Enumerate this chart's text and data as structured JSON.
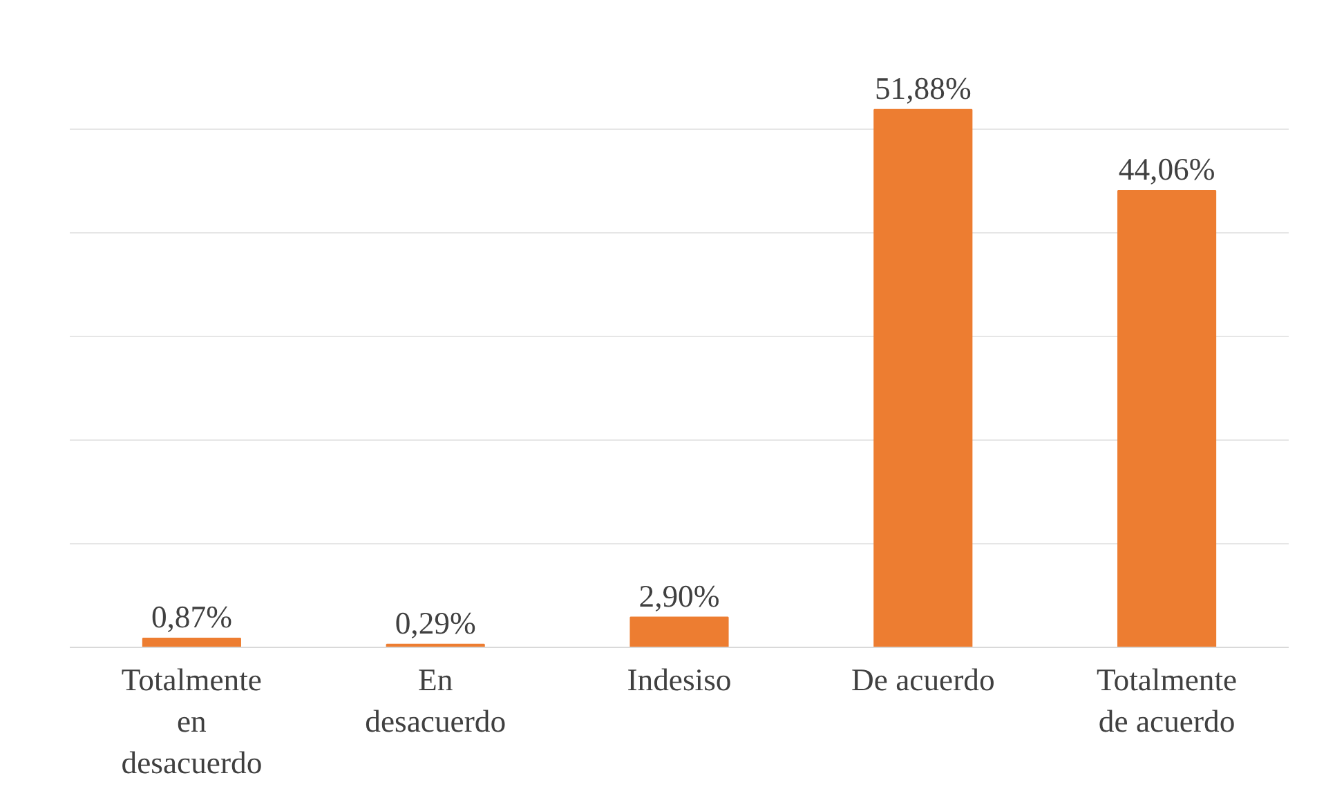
{
  "chart_data": {
    "type": "bar",
    "categories": [
      "Totalmente en desacuerdo",
      "En desacuerdo",
      "Indesiso",
      "De acuerdo",
      "Totalmente de acuerdo"
    ],
    "values": [
      0.87,
      0.29,
      2.9,
      51.88,
      44.06
    ],
    "value_labels": [
      "0,87%",
      "0,29%",
      "2,90%",
      "51,88%",
      "44,06%"
    ],
    "color": "#ed7d31",
    "tick_labels": "x",
    "grid": "y"
  }
}
